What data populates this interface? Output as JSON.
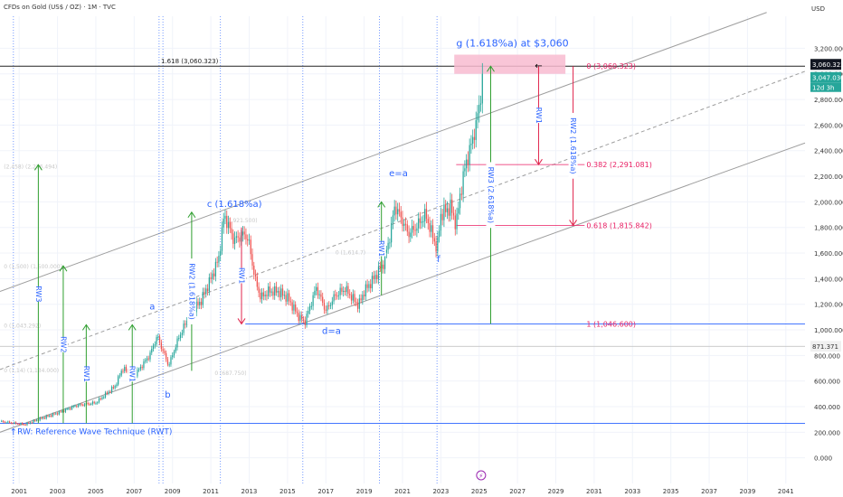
{
  "header": {
    "title": "CFDs on Gold (US$ / OZ) · 1M · TVC",
    "currency": "USD"
  },
  "colors": {
    "bull": "#26a69a",
    "bear": "#ef5350",
    "blue": "#2962ff",
    "green": "#2e9e2e",
    "red": "#e0244c",
    "pink": "#e91e63",
    "grid": "#f0f3fa",
    "channel": "#9e9e9e"
  },
  "chart_data": {
    "type": "candlestick",
    "xlim": [
      2000,
      2042
    ],
    "ylim": [
      -200,
      3450
    ],
    "x_ticks": [
      "2001",
      "2003",
      "2005",
      "2007",
      "2009",
      "2011",
      "2013",
      "2015",
      "2017",
      "2019",
      "2021",
      "2023",
      "2025",
      "2027",
      "2029",
      "2031",
      "2033",
      "2035",
      "2037",
      "2039",
      "2041"
    ],
    "y_ticks": [
      "0.000",
      "200.000",
      "400.000",
      "600.000",
      "800.000",
      "1,000.000",
      "1,200.000",
      "1,400.000",
      "1,600.000",
      "1,800.000",
      "2,000.000",
      "2,200.000",
      "2,400.000",
      "2,600.000",
      "2,800.000",
      "3,000.000",
      "3,200.000"
    ],
    "price_path": [
      [
        2000.0,
        285
      ],
      [
        2001.3,
        260
      ],
      [
        2002.0,
        300
      ],
      [
        2003.0,
        350
      ],
      [
        2004.0,
        410
      ],
      [
        2005.0,
        430
      ],
      [
        2006.0,
        560
      ],
      [
        2006.4,
        700
      ],
      [
        2007.0,
        640
      ],
      [
        2007.8,
        800
      ],
      [
        2008.2,
        950
      ],
      [
        2008.8,
        720
      ],
      [
        2009.3,
        930
      ],
      [
        2009.9,
        1120
      ],
      [
        2010.5,
        1230
      ],
      [
        2011.0,
        1400
      ],
      [
        2011.4,
        1550
      ],
      [
        2011.7,
        1900
      ],
      [
        2012.2,
        1700
      ],
      [
        2012.8,
        1750
      ],
      [
        2013.0,
        1670
      ],
      [
        2013.3,
        1400
      ],
      [
        2013.6,
        1250
      ],
      [
        2014.0,
        1300
      ],
      [
        2014.5,
        1300
      ],
      [
        2015.0,
        1250
      ],
      [
        2015.6,
        1100
      ],
      [
        2015.9,
        1060
      ],
      [
        2016.5,
        1330
      ],
      [
        2017.0,
        1150
      ],
      [
        2017.5,
        1270
      ],
      [
        2018.0,
        1320
      ],
      [
        2018.7,
        1190
      ],
      [
        2019.0,
        1300
      ],
      [
        2019.5,
        1400
      ],
      [
        2020.0,
        1520
      ],
      [
        2020.3,
        1700
      ],
      [
        2020.6,
        1970
      ],
      [
        2021.0,
        1850
      ],
      [
        2021.3,
        1750
      ],
      [
        2021.7,
        1800
      ],
      [
        2022.2,
        1900
      ],
      [
        2022.8,
        1630
      ],
      [
        2023.0,
        1900
      ],
      [
        2023.5,
        1960
      ],
      [
        2023.8,
        1820
      ],
      [
        2024.0,
        2050
      ],
      [
        2024.3,
        2300
      ],
      [
        2024.6,
        2450
      ],
      [
        2024.9,
        2650
      ],
      [
        2025.1,
        2850
      ],
      [
        2025.2,
        3047
      ]
    ],
    "last_price": "3,047.030",
    "last_price_countdown": "12d 3h",
    "target_price_label": "3,060.323",
    "extra_axis_label": "871.371",
    "extra_axis_value": 871.371,
    "horizontal_lines": [
      3060.323,
      871.371,
      1046.6,
      270
    ],
    "target_line_label": "1.618 (3,060.323)",
    "fib_levels": [
      {
        "ratio": "0",
        "price": 3060.323,
        "label": "0 (3,060.323)"
      },
      {
        "ratio": "0.382",
        "price": 2291.081,
        "label": "0.382 (2,291.081)"
      },
      {
        "ratio": "0.618",
        "price": 1815.842,
        "label": "0.618 (1,815.842)"
      },
      {
        "ratio": "1",
        "price": 1046.6,
        "label": "1 (1,046.600)"
      }
    ],
    "faint_levels": [
      {
        "x": 2000.2,
        "price": 2280,
        "label": "(2,458) (2,276.494)"
      },
      {
        "x": 2000.2,
        "price": 1500,
        "label": "0 (1,500) (1,500.000)"
      },
      {
        "x": 2000.2,
        "price": 1040,
        "label": "0 (1,043.292)"
      },
      {
        "x": 2000.2,
        "price": 690,
        "label": "0 (1,14) (1,134.000)"
      },
      {
        "x": 2011.5,
        "price": 1860,
        "label": "1 (1,921.500)"
      },
      {
        "x": 2011.2,
        "price": 670,
        "label": "0 (687.750)"
      },
      {
        "x": 2017.5,
        "price": 1610,
        "label": "0 (1,614.7)"
      }
    ],
    "annotations": {
      "title": "g (1.618%a) at $3,060",
      "c": "c (1.618%a)",
      "a": "a",
      "b": "b",
      "d": "d=a",
      "e": "e=a",
      "f": "f",
      "rwt": "RW: Reference Wave Technique (RWT)"
    },
    "green_rw": [
      {
        "x": 2002.0,
        "y0": 270,
        "y1": 2290,
        "label": "RW3"
      },
      {
        "x": 2003.3,
        "y0": 270,
        "y1": 1500,
        "label": "RW2"
      },
      {
        "x": 2004.5,
        "y0": 270,
        "y1": 1040,
        "label": "RW1"
      },
      {
        "x": 2006.9,
        "y0": 270,
        "y1": 1040,
        "label": "RW1"
      },
      {
        "x": 2010.0,
        "y0": 680,
        "y1": 1920,
        "label": "RW2 (1.618%a)"
      },
      {
        "x": 2019.9,
        "y0": 1270,
        "y1": 2000,
        "label": "RW1"
      },
      {
        "x": 2025.6,
        "y0": 1046.6,
        "y1": 3060,
        "label": "RW3 (2.618%a)"
      }
    ],
    "red_rw": [
      {
        "x": 2012.6,
        "y0": 1800,
        "y1": 1046.6,
        "label": "RW1"
      },
      {
        "x": 2028.1,
        "y0": 3060,
        "y1": 2291,
        "label": "RW1"
      },
      {
        "x": 2029.9,
        "y0": 3060,
        "y1": 1816,
        "label": "RW2 (1.618%a)"
      }
    ],
    "vertical_dotted_years": [
      2000.7,
      2008.3,
      2008.5,
      2011.5,
      2015.8,
      2019.8,
      2022.8
    ],
    "channel": {
      "upper": [
        [
          2000,
          1300
        ],
        [
          2040,
          3480
        ]
      ],
      "middle": [
        [
          2000,
          690
        ],
        [
          2042,
          3020
        ]
      ],
      "lower": [
        [
          2000,
          200
        ],
        [
          2042,
          2460
        ]
      ]
    }
  }
}
